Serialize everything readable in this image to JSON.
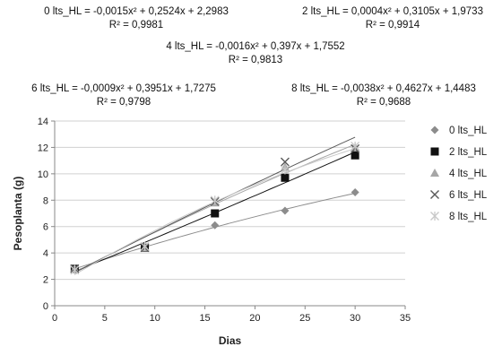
{
  "equations": [
    {
      "line1": "0 lts_HL = -0,0015x² + 0,2524x + 2,2983",
      "line2": "R² = 0,9981"
    },
    {
      "line1": "2 lts_HL = 0,0004x² + 0,3105x + 1,9733",
      "line2": "R² = 0,9914"
    },
    {
      "line1": "4 lts_HL = -0,0016x² + 0,397x + 1,7552",
      "line2": "R² = 0,9813"
    },
    {
      "line1": "6 lts_HL = -0,0009x² + 0,3951x + 1,7275",
      "line2": "R² = 0,9798"
    },
    {
      "line1": "8 lts_HL = -0,0038x² + 0,4627x + 1,4483",
      "line2": "R² = 0,9688"
    }
  ],
  "chart_data": {
    "type": "scatter",
    "xlabel": "Dias",
    "ylabel": "Pesoplanta (g)",
    "xlim": [
      0,
      35
    ],
    "ylim": [
      0,
      14
    ],
    "xticks": [
      "0",
      "5",
      "10",
      "15",
      "20",
      "25",
      "30",
      "35"
    ],
    "yticks": [
      "0",
      "2",
      "4",
      "6",
      "8",
      "10",
      "12",
      "14"
    ],
    "grid": true,
    "legend_position": "right",
    "x": [
      2,
      9,
      16,
      23,
      30
    ],
    "series": [
      {
        "name": "0 lts_HL",
        "marker": "diamond",
        "color": "#8c8c8c",
        "values": [
          2.8,
          4.4,
          6.1,
          7.2,
          8.6
        ],
        "trend": [
          -0.0015,
          0.2524,
          2.2983
        ]
      },
      {
        "name": "2 lts_HL",
        "marker": "square",
        "color": "#111111",
        "values": [
          2.8,
          4.4,
          7.0,
          9.7,
          11.4
        ],
        "trend": [
          0.0004,
          0.3105,
          1.9733
        ]
      },
      {
        "name": "4 lts_HL",
        "marker": "triangle",
        "color": "#a6a6a6",
        "values": [
          2.8,
          4.4,
          7.8,
          10.5,
          12.0
        ],
        "trend": [
          -0.0016,
          0.397,
          1.7552
        ]
      },
      {
        "name": "6 lts_HL",
        "marker": "x",
        "color": "#595959",
        "values": [
          2.8,
          4.4,
          7.9,
          10.9,
          11.9
        ],
        "trend": [
          -0.0009,
          0.3951,
          1.7275
        ]
      },
      {
        "name": "8 lts_HL",
        "marker": "star",
        "color": "#c8c8c8",
        "values": [
          2.7,
          4.5,
          8.0,
          10.3,
          12.1
        ],
        "trend": [
          -0.0038,
          0.4627,
          1.4483
        ]
      }
    ]
  }
}
